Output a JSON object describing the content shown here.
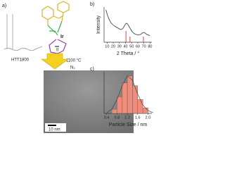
{
  "scheme": {
    "panel_label": "a)",
    "metal": "Ir",
    "ligand": "II",
    "polymer": "HTT1800",
    "temperature": "1100 °C",
    "atmosphere": "N₂",
    "scale_bar": "10 nm"
  },
  "chart_data": [
    {
      "type": "line",
      "panel_label": "b)",
      "x_label": "2 Theta / °",
      "y_label": "Intensity",
      "x": [
        8,
        10,
        12,
        14,
        16,
        18,
        20,
        22,
        24,
        26,
        28,
        30,
        32,
        34,
        36,
        38,
        40,
        42,
        44,
        46,
        48,
        50,
        52,
        54,
        56,
        58,
        60,
        62,
        64,
        66,
        68,
        70,
        72,
        74,
        76,
        78,
        80
      ],
      "values": [
        92,
        80,
        70,
        62,
        56,
        52,
        49,
        46,
        44,
        42,
        40,
        38,
        36,
        37,
        40,
        46,
        52,
        54,
        50,
        44,
        38,
        32,
        28,
        25,
        23,
        22,
        21,
        21,
        22,
        24,
        27,
        28,
        26,
        23,
        21,
        20,
        19
      ],
      "color": "#333333",
      "reference_peaks": {
        "x": [
          40.7,
          47.3,
          69.1
        ],
        "values": [
          32,
          16,
          16
        ],
        "color": "#e8413a"
      },
      "xlim": [
        5,
        83
      ],
      "ylim": [
        0,
        100
      ],
      "xticks": [
        10,
        20,
        30,
        40,
        50,
        60,
        70,
        80
      ]
    },
    {
      "type": "histogram",
      "panel_label": "c)",
      "x_label": "Particle Size / nm",
      "bins": [
        0.6,
        0.8,
        1.0,
        1.2,
        1.4,
        1.6,
        1.8,
        2.0
      ],
      "values": [
        3,
        12,
        22,
        27,
        20,
        10,
        4
      ],
      "color": "#f08c7c",
      "fit": {
        "x": [
          0.4,
          0.6,
          0.8,
          1.0,
          1.2,
          1.4,
          1.6,
          1.8,
          2.0,
          2.2
        ],
        "values": [
          0.5,
          3,
          10,
          20,
          27,
          24,
          14,
          6,
          2,
          0.5
        ],
        "color": "#444444"
      },
      "xlim": [
        0.3,
        2.15
      ],
      "ylim": [
        0,
        30
      ],
      "xticks": [
        0.4,
        0.8,
        1.2,
        1.6,
        {
          "value": 2,
          "label": "2.0"
        }
      ]
    }
  ]
}
